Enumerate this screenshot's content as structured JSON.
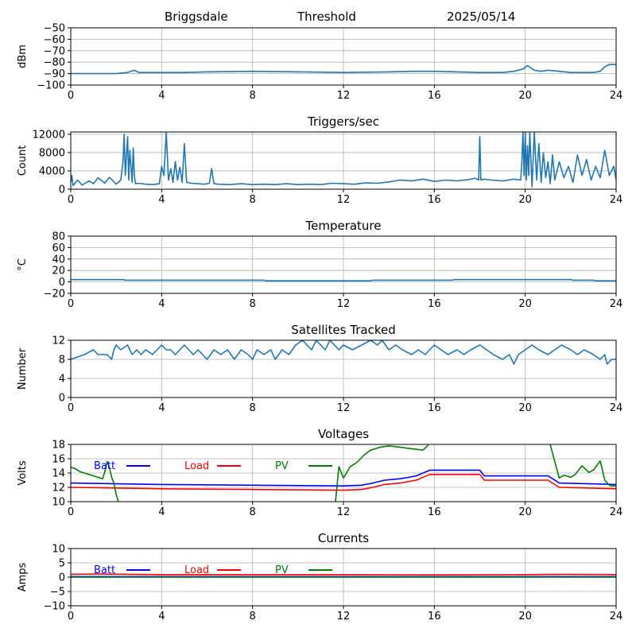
{
  "header": {
    "station": "Briggsdale",
    "mode": "Threshold",
    "date": "2025/05/14"
  },
  "colors": {
    "line": "#1f77b4",
    "batt": "#0000ff",
    "load": "#ff0000",
    "pv": "#008000",
    "grid": "#b0b0b0"
  },
  "chart_data": [
    {
      "type": "line",
      "title": "",
      "xlabel": "",
      "ylabel": "dBm",
      "xlim": [
        0,
        24
      ],
      "ylim": [
        -100,
        -50
      ],
      "xticks": [
        0,
        4,
        8,
        12,
        16,
        20,
        24
      ],
      "yticks": [
        -100,
        -90,
        -80,
        -70,
        -60,
        -50
      ],
      "grid": true,
      "series": [
        {
          "x": [
            0,
            1,
            2,
            2.5,
            2.8,
            3,
            4,
            5,
            6,
            8,
            10,
            12,
            14,
            15,
            16,
            17,
            18,
            19,
            19.5,
            19.9,
            20.1,
            20.4,
            20.7,
            21,
            21.5,
            22,
            22.5,
            23,
            23.3,
            23.5,
            23.7,
            24
          ],
          "y": [
            -90,
            -90,
            -90,
            -89,
            -87,
            -89,
            -89,
            -89,
            -88.5,
            -88,
            -88.5,
            -89,
            -88.5,
            -88,
            -88,
            -88.5,
            -89,
            -89,
            -88,
            -86,
            -83,
            -87,
            -88,
            -87,
            -88,
            -89,
            -89,
            -89,
            -88,
            -84,
            -82,
            -82
          ]
        }
      ]
    },
    {
      "type": "line",
      "title": "Triggers/sec",
      "xlabel": "",
      "ylabel": "Count",
      "xlim": [
        0,
        24
      ],
      "ylim": [
        0,
        12500
      ],
      "xticks": [
        0,
        4,
        8,
        12,
        16,
        20,
        24
      ],
      "yticks": [
        0,
        4000,
        8000,
        12000
      ],
      "grid": true,
      "series": [
        {
          "x": [
            0,
            0.05,
            0.1,
            0.3,
            0.5,
            0.8,
            1.0,
            1.2,
            1.5,
            1.7,
            2.0,
            2.2,
            2.3,
            2.35,
            2.4,
            2.5,
            2.55,
            2.6,
            2.7,
            2.75,
            2.8,
            2.85,
            3.0,
            3.3,
            3.6,
            3.9,
            4.0,
            4.1,
            4.2,
            4.3,
            4.4,
            4.5,
            4.6,
            4.7,
            4.8,
            4.9,
            5.0,
            5.1,
            5.3,
            5.6,
            5.9,
            6.1,
            6.2,
            6.3,
            6.5,
            7.0,
            7.5,
            8.0,
            8.5,
            9.0,
            9.5,
            10.0,
            10.5,
            11.0,
            11.5,
            12.0,
            12.5,
            13.0,
            13.5,
            14.0,
            14.5,
            15.0,
            15.5,
            16.0,
            16.5,
            17.0,
            17.5,
            17.8,
            17.95,
            18.0,
            18.05,
            18.2,
            18.5,
            19.0,
            19.5,
            19.8,
            19.85,
            19.9,
            19.95,
            20.0,
            20.05,
            20.1,
            20.15,
            20.2,
            20.3,
            20.4,
            20.5,
            20.6,
            20.7,
            20.8,
            20.9,
            21.0,
            21.1,
            21.2,
            21.3,
            21.5,
            21.7,
            21.9,
            22.1,
            22.3,
            22.5,
            22.7,
            22.9,
            23.1,
            23.3,
            23.5,
            23.7,
            23.9,
            24
          ],
          "y": [
            1500,
            3000,
            800,
            2000,
            900,
            1800,
            1200,
            2500,
            1300,
            2600,
            1100,
            2000,
            6000,
            12000,
            3000,
            11500,
            2000,
            8500,
            1500,
            9000,
            3000,
            1200,
            1300,
            1100,
            1000,
            1200,
            5000,
            3000,
            12500,
            2000,
            4500,
            1500,
            6000,
            2000,
            4800,
            1500,
            10000,
            1500,
            1300,
            1200,
            1100,
            1300,
            4500,
            1200,
            1100,
            1000,
            1200,
            1000,
            1100,
            1000,
            1200,
            1000,
            1100,
            1000,
            1300,
            1200,
            1100,
            1400,
            1300,
            1600,
            2000,
            1800,
            2200,
            1700,
            2000,
            1800,
            2100,
            2400,
            2000,
            11500,
            2000,
            2200,
            2000,
            1800,
            2200,
            2000,
            6000,
            12500,
            3000,
            12500,
            2000,
            9500,
            3000,
            12500,
            500,
            12500,
            2000,
            10000,
            1500,
            8000,
            2500,
            6000,
            1200,
            7500,
            2000,
            6000,
            2500,
            5000,
            1500,
            7500,
            3000,
            6500,
            2000,
            5000,
            2500,
            8500,
            3000,
            5000,
            2000
          ]
        }
      ]
    },
    {
      "type": "line",
      "title": "Temperature",
      "xlabel": "",
      "ylabel": "°C",
      "xlim": [
        0,
        24
      ],
      "ylim": [
        -20,
        80
      ],
      "xticks": [
        0,
        4,
        8,
        12,
        16,
        20,
        24
      ],
      "yticks": [
        -20,
        0,
        20,
        40,
        60,
        80
      ],
      "grid": true,
      "series": [
        {
          "x": [
            0,
            2.3,
            2.4,
            8.5,
            8.6,
            13.2,
            13.3,
            16.8,
            16.9,
            22.0,
            22.1,
            23.0,
            23.1,
            24
          ],
          "y": [
            4,
            4,
            3,
            3,
            2,
            2,
            3,
            3,
            4,
            4,
            3,
            3,
            2,
            2
          ]
        }
      ]
    },
    {
      "type": "line",
      "title": "Satellites Tracked",
      "xlabel": "",
      "ylabel": "Number",
      "xlim": [
        0,
        24
      ],
      "ylim": [
        0,
        12
      ],
      "xticks": [
        0,
        4,
        8,
        12,
        16,
        20,
        24
      ],
      "yticks": [
        0,
        4,
        8,
        12
      ],
      "grid": true,
      "series": [
        {
          "x": [
            0,
            0.6,
            1.0,
            1.2,
            1.6,
            1.8,
            1.9,
            2.0,
            2.2,
            2.5,
            2.7,
            2.9,
            3.1,
            3.3,
            3.6,
            3.8,
            4.0,
            4.2,
            4.4,
            4.6,
            4.8,
            5.0,
            5.2,
            5.4,
            5.6,
            5.8,
            6.0,
            6.3,
            6.6,
            6.9,
            7.2,
            7.5,
            7.8,
            8.0,
            8.2,
            8.5,
            8.8,
            9.0,
            9.3,
            9.6,
            9.9,
            10.2,
            10.4,
            10.6,
            10.8,
            11.0,
            11.2,
            11.4,
            11.6,
            11.8,
            12.0,
            12.4,
            12.8,
            13.2,
            13.5,
            13.7,
            14.0,
            14.3,
            14.6,
            15.0,
            15.3,
            15.6,
            16.0,
            16.3,
            16.6,
            17.0,
            17.3,
            17.6,
            18.0,
            18.3,
            18.6,
            19.0,
            19.3,
            19.5,
            19.7,
            20.0,
            20.3,
            20.6,
            21.0,
            21.3,
            21.6,
            22.0,
            22.3,
            22.6,
            23.0,
            23.3,
            23.5,
            23.6,
            23.8,
            24
          ],
          "y": [
            8,
            9,
            10,
            9,
            9,
            8,
            10,
            11,
            10,
            11,
            9,
            10,
            9,
            10,
            9,
            10,
            11,
            10,
            10,
            9,
            10,
            11,
            10,
            9,
            10,
            9,
            8,
            10,
            9,
            10,
            8,
            10,
            9,
            8,
            10,
            9,
            10,
            8,
            10,
            9,
            11,
            12,
            11,
            10,
            12,
            11,
            10,
            12,
            11,
            10,
            11,
            10,
            11,
            12,
            11,
            12,
            10,
            11,
            10,
            9,
            10,
            9,
            11,
            10,
            9,
            10,
            9,
            10,
            11,
            10,
            9,
            8,
            9,
            7,
            9,
            10,
            11,
            10,
            9,
            10,
            11,
            10,
            9,
            10,
            9,
            8,
            9,
            7,
            8,
            8
          ]
        }
      ]
    },
    {
      "type": "line",
      "title": "Voltages",
      "xlabel": "",
      "ylabel": "Volts",
      "xlim": [
        0,
        24
      ],
      "ylim": [
        10,
        18
      ],
      "xticks": [
        0,
        4,
        8,
        12,
        16,
        20,
        24
      ],
      "yticks": [
        10,
        12,
        14,
        16,
        18
      ],
      "grid": true,
      "legend": "top-left",
      "series": [
        {
          "name": "Batt",
          "color": "#0000ff",
          "x": [
            0,
            4,
            8,
            12,
            12.8,
            13.3,
            13.8,
            14.5,
            15.2,
            15.8,
            16.5,
            18.0,
            18.2,
            21.0,
            21.5,
            24
          ],
          "y": [
            12.6,
            12.4,
            12.3,
            12.2,
            12.3,
            12.6,
            13.0,
            13.2,
            13.6,
            14.4,
            14.4,
            14.4,
            13.6,
            13.6,
            12.6,
            12.4
          ]
        },
        {
          "name": "Load",
          "color": "#ff0000",
          "x": [
            0,
            4,
            8,
            12,
            12.8,
            13.3,
            13.8,
            14.5,
            15.2,
            15.8,
            16.5,
            18.0,
            18.2,
            21.0,
            21.5,
            24
          ],
          "y": [
            12.0,
            11.8,
            11.7,
            11.6,
            11.7,
            12.0,
            12.4,
            12.6,
            13.0,
            13.8,
            13.8,
            13.8,
            13.0,
            13.0,
            12.0,
            11.8
          ]
        },
        {
          "name": "PV",
          "color": "#008000",
          "x": [
            0,
            0.2,
            0.4,
            0.6,
            0.8,
            1.0,
            1.2,
            1.4,
            1.5,
            1.6,
            1.7,
            1.8,
            1.9,
            2.0,
            2.1,
            2.2,
            11.6,
            11.65,
            11.8,
            12.0,
            12.3,
            12.6,
            12.9,
            13.2,
            13.6,
            14.0,
            14.5,
            15.0,
            15.5,
            15.7,
            15.8,
            21.0,
            21.1,
            21.3,
            21.5,
            21.7,
            22.0,
            22.2,
            22.5,
            22.8,
            23.0,
            23.3,
            23.5,
            23.7,
            23.8,
            24
          ],
          "y": [
            14.8,
            14.6,
            14.2,
            14.0,
            13.8,
            13.6,
            13.4,
            13.2,
            14.2,
            15.6,
            14.8,
            13.4,
            12.6,
            11.0,
            10.0,
            9.5,
            9.5,
            10.0,
            14.9,
            13.3,
            14.9,
            15.5,
            16.5,
            17.2,
            17.6,
            17.8,
            17.6,
            17.4,
            17.2,
            17.8,
            18.5,
            18.5,
            18.0,
            15.6,
            13.3,
            13.7,
            13.4,
            13.8,
            15.0,
            14.1,
            14.4,
            15.7,
            13.0,
            12.3,
            12.2,
            12.2
          ]
        }
      ]
    },
    {
      "type": "line",
      "title": "Currents",
      "xlabel": "",
      "ylabel": "Amps",
      "xlim": [
        0,
        24
      ],
      "ylim": [
        -10,
        10
      ],
      "xticks": [
        0,
        4,
        8,
        12,
        16,
        20,
        24
      ],
      "yticks": [
        -10,
        -5,
        0,
        5,
        10
      ],
      "grid": true,
      "legend": "top-left",
      "series": [
        {
          "name": "Batt",
          "color": "#0000ff",
          "x": [
            0,
            4,
            8,
            12,
            16,
            20,
            24
          ],
          "y": [
            0.2,
            0.2,
            0.2,
            0.2,
            0.2,
            0.2,
            0.2
          ]
        },
        {
          "name": "Load",
          "color": "#ff0000",
          "x": [
            0,
            1,
            4,
            8,
            12,
            16,
            20,
            21.5,
            24
          ],
          "y": [
            1.0,
            1.1,
            0.9,
            0.9,
            0.9,
            0.8,
            0.9,
            1.0,
            0.9
          ]
        },
        {
          "name": "PV",
          "color": "#008000",
          "x": [
            0,
            4,
            8,
            12,
            16,
            20,
            24
          ],
          "y": [
            0,
            0,
            0,
            0,
            0,
            0,
            0
          ]
        }
      ]
    }
  ]
}
